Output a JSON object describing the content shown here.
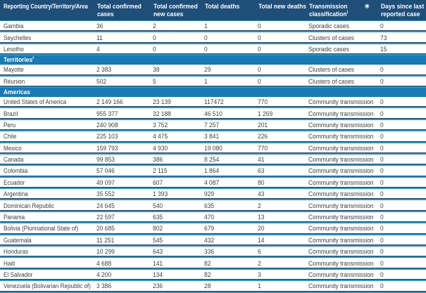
{
  "colors": {
    "header_bg": "#1f4e79",
    "section_bg": "#187ab3",
    "separator_dark": "#1d3b57",
    "separator_blue": "#2e96c3",
    "body_text": "#3f3f3f",
    "header_text": "#ffffff"
  },
  "table": {
    "columns": [
      {
        "lines": [
          "Reporting Country/Territory/Area"
        ]
      },
      {
        "lines": [
          "Total confirmed",
          "cases"
        ]
      },
      {
        "lines": [
          "Total confirmed",
          "new cases"
        ]
      },
      {
        "lines": [
          "Total deaths"
        ]
      },
      {
        "lines": [
          "Total new deaths"
        ]
      },
      {
        "lines": [
          "Transmission",
          "classification"
        ],
        "sup": "i",
        "marker": "✳"
      },
      {
        "lines": [
          "Days since last",
          "reported case"
        ]
      }
    ],
    "rows": [
      {
        "country": "Gambia",
        "values": [
          "36",
          "2",
          "1",
          "0",
          "Sporadic cases",
          "0"
        ]
      },
      {
        "country": "Seychelles",
        "values": [
          "11",
          "0",
          "0",
          "0",
          "Clusters of cases",
          "73"
        ]
      },
      {
        "country": "Lesotho",
        "values": [
          "4",
          "0",
          "0",
          "0",
          "Sporadic cases",
          "15"
        ]
      },
      {
        "section": "Territories",
        "sup": "i"
      },
      {
        "country": "Mayotte",
        "values": [
          "2 383",
          "38",
          "29",
          "0",
          "Clusters of cases",
          "0"
        ]
      },
      {
        "country": "Réunion",
        "values": [
          "502",
          "5",
          "1",
          "0",
          "Clusters of cases",
          "0"
        ]
      },
      {
        "section": "Americas"
      },
      {
        "country": "United States of America",
        "values": [
          "2 149 166",
          "23 139",
          "117472",
          "770",
          "Community transmission",
          "0"
        ]
      },
      {
        "country": "Brazil",
        "values": [
          "955 377",
          "32 188",
          "46 510",
          "1 269",
          "Community transmission",
          "0"
        ]
      },
      {
        "country": "Peru",
        "values": [
          "240 908",
          "3 752",
          "7 257",
          "201",
          "Community transmission",
          "0"
        ]
      },
      {
        "country": "Chile",
        "values": [
          "225 103",
          "4 475",
          "3 841",
          "226",
          "Community transmission",
          "0"
        ]
      },
      {
        "country": "Mexico",
        "values": [
          "159 793",
          "4 930",
          "19 080",
          "770",
          "Community transmission",
          "0"
        ]
      },
      {
        "country": "Canada",
        "values": [
          "99 853",
          "386",
          "8 254",
          "41",
          "Community transmission",
          "0"
        ]
      },
      {
        "country": "Colombia",
        "values": [
          "57 046",
          "2 115",
          "1 864",
          "63",
          "Community transmission",
          "0"
        ]
      },
      {
        "country": "Ecuador",
        "values": [
          "49 097",
          "607",
          "4 087",
          "80",
          "Community transmission",
          "0"
        ]
      },
      {
        "country": "Argentina",
        "values": [
          "35 552",
          "1 393",
          "929",
          "43",
          "Community transmission",
          "0"
        ]
      },
      {
        "country": "Dominican Republic",
        "values": [
          "24 645",
          "540",
          "635",
          "2",
          "Community transmission",
          "0"
        ]
      },
      {
        "country": "Panama",
        "values": [
          "22 597",
          "635",
          "470",
          "13",
          "Community transmission",
          "0"
        ]
      },
      {
        "country": "Bolivia (Plurinational State of)",
        "values": [
          "20 685",
          "802",
          "679",
          "20",
          "Community transmission",
          "0"
        ]
      },
      {
        "country": "Guatemala",
        "values": [
          "11 251",
          "545",
          "432",
          "14",
          "Community transmission",
          "0"
        ]
      },
      {
        "country": "Honduras",
        "values": [
          "10 299",
          "643",
          "336",
          "6",
          "Community transmission",
          "0"
        ]
      },
      {
        "country": "Haiti",
        "values": [
          "4 688",
          "141",
          "82",
          "2",
          "Community transmission",
          "0"
        ]
      },
      {
        "country": "El Salvador",
        "values": [
          "4 200",
          "134",
          "82",
          "3",
          "Community transmission",
          "0"
        ]
      },
      {
        "country": "Venezuela (Bolivarian Republic of)",
        "values": [
          "3 386",
          "236",
          "28",
          "1",
          "Community transmission",
          "0"
        ]
      }
    ]
  }
}
